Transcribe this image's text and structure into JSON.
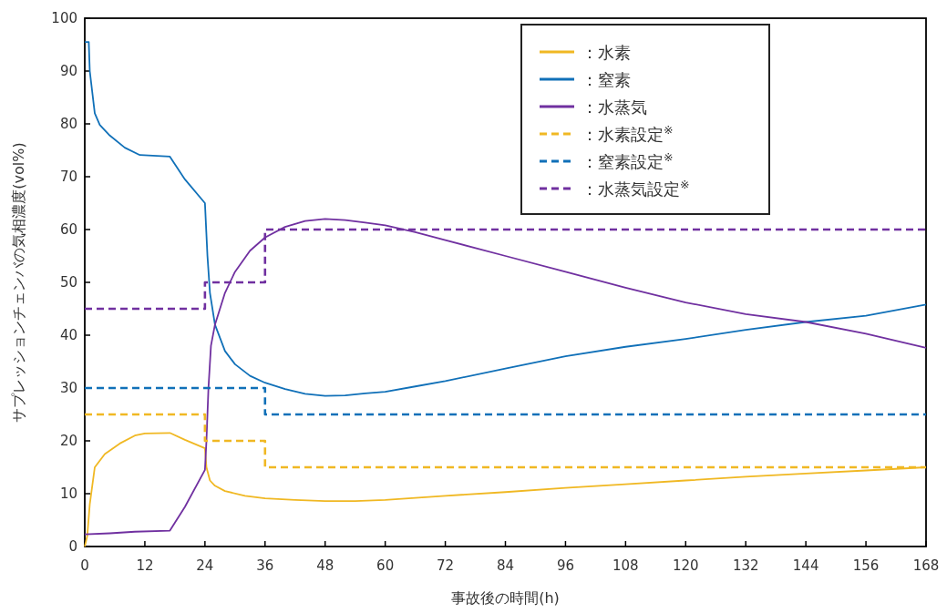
{
  "chart_data": {
    "type": "line",
    "xlabel": "事故後の時間(h)",
    "ylabel": "サプレッションチェンバの気相濃度(vol%)",
    "xlim": [
      0,
      168
    ],
    "xticks": [
      0,
      12,
      24,
      36,
      48,
      60,
      72,
      84,
      96,
      108,
      120,
      132,
      144,
      156,
      168
    ],
    "ylim": [
      0,
      100
    ],
    "yticks": [
      0,
      10,
      20,
      30,
      40,
      50,
      60,
      70,
      80,
      90,
      100
    ],
    "grid": false,
    "legend": "top right",
    "marker": "none",
    "series": [
      {
        "name": "：水素",
        "color": "#f0b823",
        "line_style": "solid",
        "x": [
          0,
          0.5,
          1,
          2,
          4,
          7,
          10,
          12,
          17,
          20,
          24,
          24.3,
          25,
          26,
          28,
          32,
          36,
          42,
          48,
          54,
          60,
          72,
          84,
          96,
          108,
          120,
          132,
          144,
          156,
          168
        ],
        "values": [
          0,
          2,
          8,
          15,
          17.5,
          19.5,
          21,
          21.4,
          21.5,
          20.2,
          18.6,
          15,
          12.5,
          11.5,
          10.5,
          9.6,
          9.1,
          8.8,
          8.6,
          8.6,
          8.8,
          9.6,
          10.3,
          11.1,
          11.8,
          12.5,
          13.2,
          13.8,
          14.4,
          15
        ]
      },
      {
        "name": "：窒素",
        "color": "#1070b8",
        "line_style": "solid",
        "x": [
          0,
          0.8,
          1,
          2,
          3,
          5,
          8,
          11,
          17,
          20,
          24,
          24.5,
          25,
          26,
          28,
          30,
          33,
          36,
          40,
          44,
          48,
          52,
          56,
          60,
          66,
          72,
          84,
          96,
          108,
          120,
          132,
          144,
          156,
          168
        ],
        "values": [
          95.5,
          95.5,
          90,
          82,
          79.8,
          77.8,
          75.5,
          74.1,
          73.8,
          69.5,
          65,
          55,
          48,
          42,
          37,
          34.5,
          32.3,
          31,
          29.8,
          28.9,
          28.5,
          28.6,
          29,
          29.3,
          30.3,
          31.3,
          33.7,
          36,
          37.8,
          39.3,
          41,
          42.5,
          43.7,
          45.8
        ]
      },
      {
        "name": "：水蒸気",
        "color": "#7030a0",
        "line_style": "solid",
        "x": [
          0,
          5,
          10,
          17,
          20,
          24,
          24.3,
          24.7,
          25.2,
          26,
          28,
          30,
          33,
          36,
          40,
          44,
          48,
          52,
          56,
          60,
          66,
          72,
          84,
          96,
          108,
          120,
          132,
          144,
          156,
          168
        ],
        "values": [
          2.3,
          2.5,
          2.8,
          3,
          7.5,
          14.5,
          20,
          30,
          38,
          42,
          48,
          52,
          56,
          58.5,
          60.5,
          61.6,
          62,
          61.8,
          61.3,
          60.8,
          59.5,
          58,
          55,
          52,
          49,
          46.2,
          44,
          42.5,
          40.3,
          37.6
        ]
      },
      {
        "name": "：水素設定$^{※}$",
        "type": "step",
        "color": "#f0b823",
        "line_style": "dashed",
        "x": [
          0,
          24,
          36,
          168
        ],
        "values": [
          25,
          20,
          15,
          15
        ]
      },
      {
        "name": "：窒素設定$^{※}$",
        "type": "step",
        "color": "#1070b8",
        "line_style": "dashed",
        "x": [
          0,
          36,
          168
        ],
        "values": [
          30,
          25,
          25
        ]
      },
      {
        "name": "：水蒸気設定$^{※}$",
        "type": "step",
        "color": "#7030a0",
        "line_style": "dashed",
        "x": [
          0,
          24,
          36,
          168
        ],
        "values": [
          45,
          50,
          60,
          60
        ]
      }
    ]
  }
}
